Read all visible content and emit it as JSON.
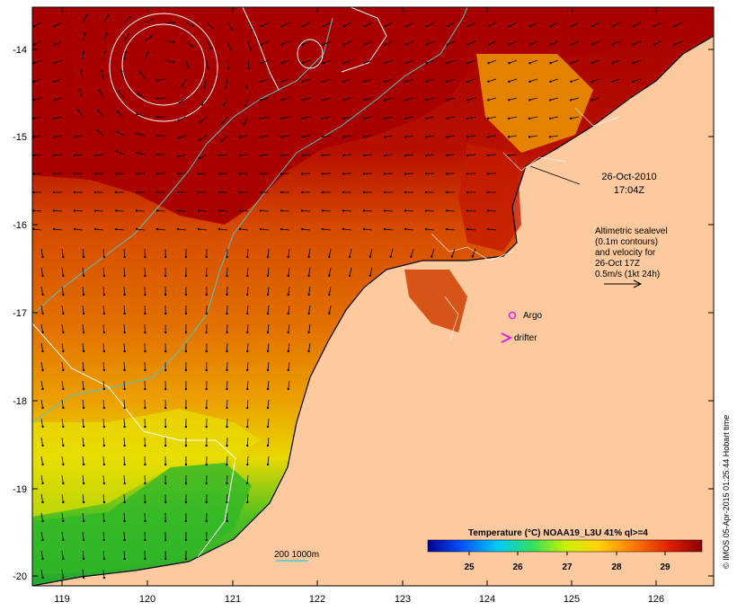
{
  "map": {
    "x_ticks": [
      "119",
      "120",
      "121",
      "122",
      "123",
      "124",
      "125",
      "126"
    ],
    "y_ticks": [
      "-14",
      "-15",
      "-16",
      "-17",
      "-18",
      "-19",
      "-20"
    ],
    "date_line1": "26-Oct-2010",
    "date_line2": "17:04Z",
    "sealevel_note": [
      "Altimetric sealevel",
      "(0.1m contours)",
      "and velocity for",
      "26-Oct 17Z",
      "0.5m/s (1kt 24h)"
    ],
    "argo_label": "Argo",
    "drifter_label": "drifter",
    "depth_label": "200  1000m",
    "colorbar_title": "Temperature (°C) NOAA19_L3U 41% ql>=4",
    "colorbar_ticks": [
      "25",
      "26",
      "27",
      "28",
      "29"
    ],
    "credit": "© IMOS 05-Apr-2015 01:25:44 Hobart time",
    "colors": {
      "land": "#fdc99e",
      "sst_hot": "#a50000",
      "sst_warm": "#d94a00",
      "sst_mid": "#f29a00",
      "sst_cool": "#e8e400",
      "sst_cold": "#22b020",
      "isobath": "#4ec8c8",
      "argo": "#e020e0"
    }
  }
}
